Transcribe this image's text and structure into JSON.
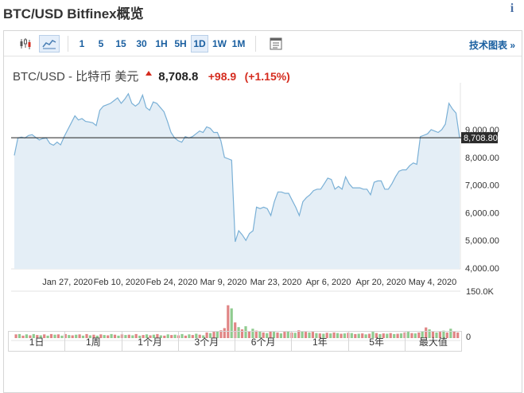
{
  "page_title": "BTC/USD Bitfinex概览",
  "toolbar": {
    "icons": [
      "candlestick-icon",
      "area-chart-icon"
    ],
    "intervals": [
      "1",
      "5",
      "15",
      "30",
      "1H",
      "5H",
      "1D",
      "1W",
      "1M"
    ],
    "selected_interval": "1D",
    "settings_icon": "chart-settings-icon",
    "tech_chart_link": "技术图表 »"
  },
  "quote": {
    "name": "BTC/USD - 比特币 美元",
    "price": "8,708.8",
    "change": "+98.9",
    "change_pct": "(+1.15%)",
    "direction": "up"
  },
  "colors": {
    "up": "#d52b1e",
    "vol_up": "#8fcb8f",
    "vol_down": "#e08585",
    "line": "#7ab0d6",
    "area": "#e4eef6",
    "link": "#1a5fa0"
  },
  "chart_data": {
    "type": "area",
    "price_axis": {
      "ticks": [
        "4,000.00",
        "5,000.00",
        "6,000.00",
        "7,000.00",
        "8,000.00",
        "9,000.00"
      ],
      "ylim": [
        4000,
        9000
      ],
      "current_label": "8,708.80",
      "current_value": 8708.8
    },
    "x_tick_labels": [
      "Jan 27, 2020",
      "Feb 10, 2020",
      "Feb 24, 2020",
      "Mar 9, 2020",
      "Mar 23, 2020",
      "Apr 6, 2020",
      "Apr 20, 2020",
      "May 4, 2020"
    ],
    "series": [
      {
        "values": [
          8070,
          8700,
          8730,
          8700,
          8790,
          8820,
          8720,
          8630,
          8680,
          8700,
          8500,
          8440,
          8550,
          8450,
          8750,
          9000,
          9250,
          9500,
          9350,
          9400,
          9300,
          9280,
          9250,
          9150,
          9700,
          9850,
          9900,
          9950,
          10050,
          10150,
          9950,
          10100,
          10300,
          9950,
          9850,
          9950,
          10250,
          9800,
          9700,
          10000,
          9950,
          9800,
          9650,
          9300,
          8900,
          8700,
          8600,
          8550,
          8750,
          8700,
          8750,
          8850,
          8950,
          8900,
          9100,
          9050,
          8900,
          8900,
          8600,
          8000,
          7950,
          7900,
          4950,
          5350,
          5200,
          5000,
          5250,
          5350,
          6200,
          6150,
          6200,
          6150,
          5900,
          6400,
          6750,
          6750,
          6700,
          6700,
          6450,
          6200,
          5900,
          6400,
          6550,
          6650,
          6800,
          6850,
          6850,
          7050,
          7250,
          7200,
          6850,
          6950,
          6850,
          7300,
          7050,
          6900,
          6900,
          6900,
          6850,
          6850,
          6650,
          7100,
          7150,
          7150,
          6850,
          6850,
          7050,
          7300,
          7500,
          7550,
          7550,
          7700,
          7800,
          7750,
          8750,
          8800,
          8850,
          9000,
          8950,
          8900,
          9000,
          9200,
          9950,
          9750,
          9600,
          8700
        ]
      }
    ],
    "volume": {
      "axis_labels": [
        "150.0K",
        "0"
      ],
      "values": [
        12,
        13,
        8,
        12,
        9,
        13,
        10,
        9,
        12,
        8,
        13,
        11,
        12,
        8,
        13,
        10,
        9,
        11,
        12,
        8,
        13,
        9,
        11,
        8,
        12,
        10,
        9,
        13,
        11,
        8,
        12,
        10,
        11,
        9,
        13,
        8,
        10,
        12,
        9,
        11,
        13,
        9,
        8,
        12,
        10,
        11,
        9,
        13,
        8,
        12,
        10,
        14,
        11,
        9,
        18,
        16,
        20,
        22,
        25,
        32,
        105,
        95,
        50,
        35,
        28,
        38,
        22,
        30,
        24,
        22,
        18,
        16,
        22,
        20,
        18,
        15,
        20,
        22,
        18,
        17,
        25,
        22,
        20,
        18,
        20,
        16,
        15,
        14,
        17,
        15,
        18,
        16,
        14,
        15,
        17,
        16,
        13,
        14,
        15,
        12,
        14,
        20,
        16,
        13,
        15,
        14,
        16,
        13,
        14,
        15,
        18,
        20,
        16,
        15,
        18,
        22,
        34,
        28,
        22,
        18,
        20,
        24,
        18,
        30,
        22,
        18
      ],
      "colors": [
        "down",
        "up",
        "down",
        "up",
        "down",
        "up",
        "down",
        "up",
        "down",
        "up",
        "down",
        "up",
        "down",
        "up",
        "down",
        "up",
        "down",
        "up",
        "down",
        "up",
        "down",
        "up",
        "down",
        "up",
        "down",
        "up",
        "down",
        "up",
        "down",
        "up",
        "down",
        "up",
        "down",
        "up",
        "down",
        "up",
        "down",
        "up",
        "down",
        "up",
        "down",
        "up",
        "down",
        "up",
        "down",
        "up",
        "down",
        "up",
        "down",
        "up",
        "down",
        "up",
        "down",
        "up",
        "down",
        "up",
        "down",
        "up",
        "down",
        "down",
        "down",
        "up",
        "down",
        "up",
        "down",
        "up",
        "down",
        "up",
        "down",
        "up",
        "down",
        "up",
        "down",
        "up",
        "down",
        "up",
        "down",
        "up",
        "down",
        "up",
        "down",
        "up",
        "down",
        "up",
        "down",
        "up",
        "down",
        "up",
        "down",
        "up",
        "down",
        "up",
        "down",
        "up",
        "down",
        "up",
        "down",
        "up",
        "down",
        "up",
        "down",
        "up",
        "down",
        "up",
        "down",
        "up",
        "down",
        "up",
        "down",
        "up",
        "down",
        "up",
        "down",
        "up",
        "down",
        "up",
        "down",
        "up",
        "down",
        "up",
        "down",
        "up",
        "down",
        "up",
        "down",
        "down"
      ]
    }
  },
  "range_buttons": [
    "1日",
    "1周",
    "1个月",
    "3个月",
    "6个月",
    "1年",
    "5年",
    "最大值"
  ]
}
